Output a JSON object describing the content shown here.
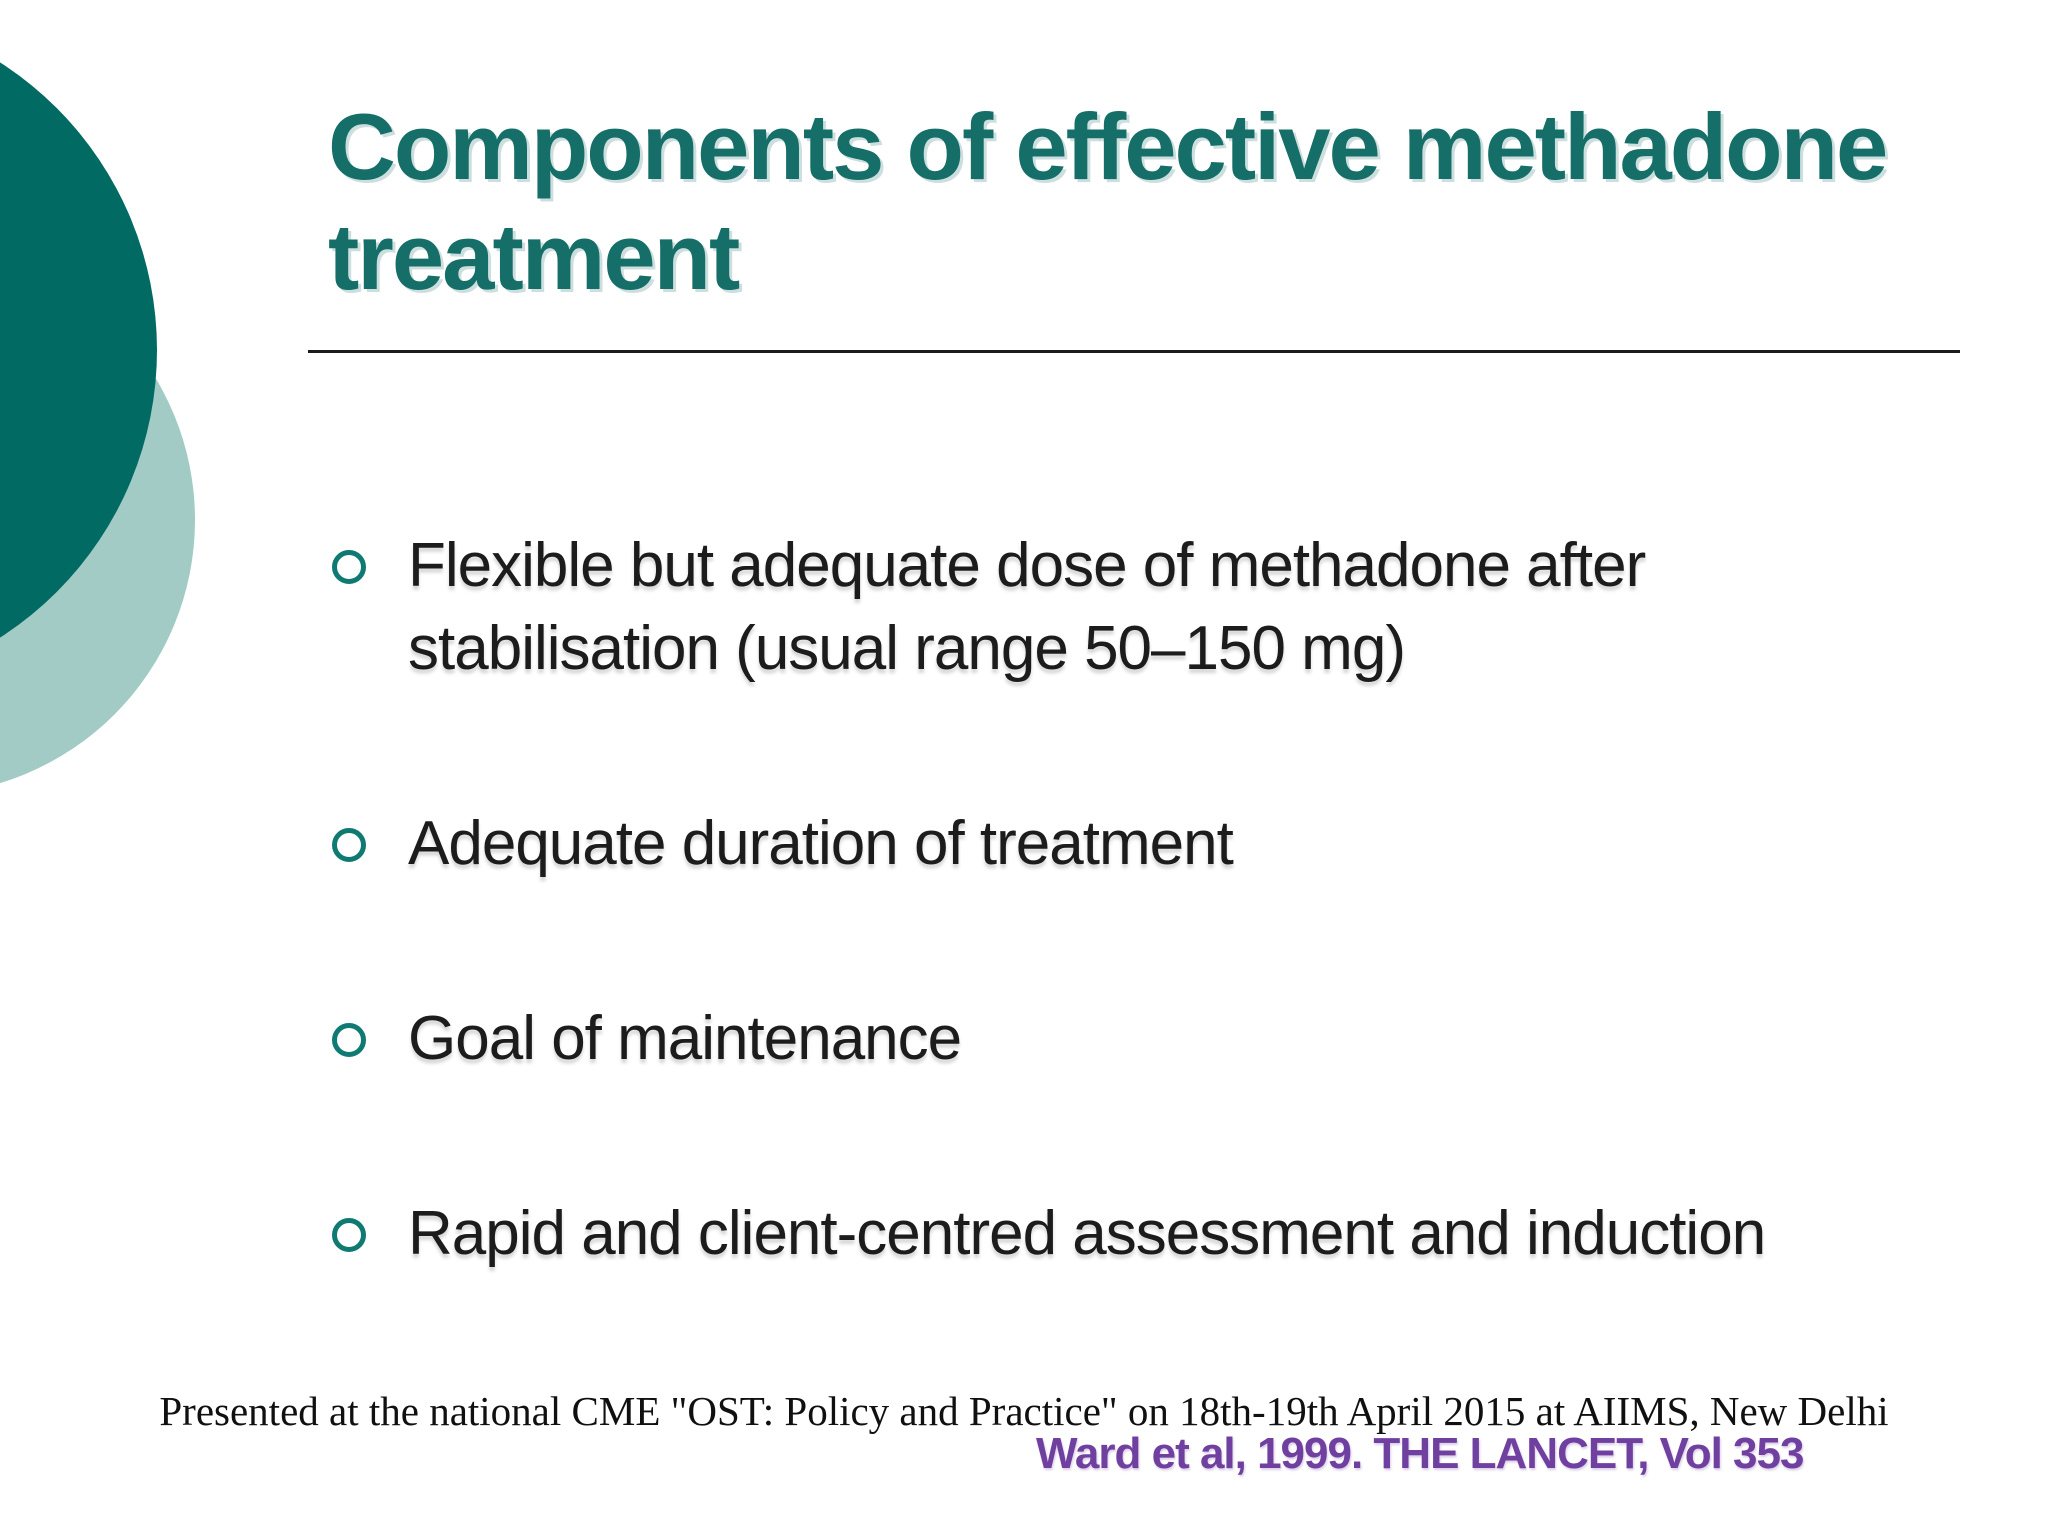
{
  "slide": {
    "title": {
      "line1": "Components of effective methadone",
      "line2": "treatment"
    },
    "bullets": [
      "Flexible but adequate dose of methadone after stabilisation (usual range 50–150 mg)",
      "Adequate duration of treatment",
      "Goal of maintenance",
      "Rapid and client-centred assessment and induction"
    ],
    "footer": {
      "presented_at": "Presented at the national CME \"OST: Policy and Practice\" on 18th-19th April 2015 at AIIMS, New Delhi",
      "citation": "Ward et al, 1999. THE LANCET, Vol 353"
    },
    "colors": {
      "title_teal": "#156e68",
      "circle_dark": "#006a63",
      "circle_light": "#a2cbc6",
      "bullet_ring_teal": "#0e7a71",
      "body_text": "#1c1c1c",
      "rule": "#1c1c1c",
      "footer_text": "#101010",
      "citation_purple": "#7040a0"
    }
  }
}
